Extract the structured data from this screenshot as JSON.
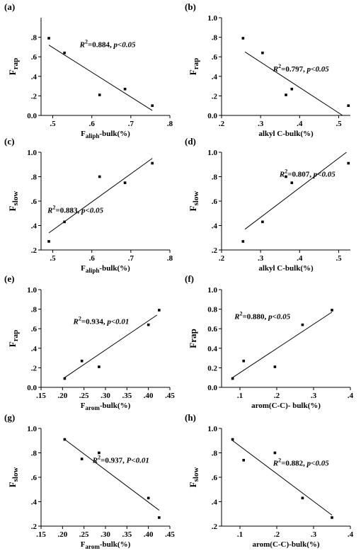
{
  "chart_data": [
    {
      "type": "scatter",
      "panel": "(a)",
      "ylabel": [
        "F",
        "rap"
      ],
      "xlabel": [
        "F",
        "aliph",
        "-bulk(%)"
      ],
      "annotation": [
        "R",
        "2",
        "=0.884, ",
        "p<0.05"
      ],
      "x": [
        0.49,
        0.53,
        0.62,
        0.685,
        0.755
      ],
      "values": [
        0.79,
        0.64,
        0.21,
        0.27,
        0.1
      ],
      "trend": {
        "x": [
          0.49,
          0.755
        ],
        "y": [
          0.72,
          0.05
        ]
      },
      "xlim": [
        0.47,
        0.8
      ],
      "ylim": [
        0,
        1
      ],
      "xticks": [
        {
          "value": 0.5,
          "label": ".5"
        },
        {
          "value": 0.6,
          "label": ".6"
        },
        {
          "value": 0.7,
          "label": ".7"
        },
        {
          "value": 0.8,
          "label": ".8"
        }
      ],
      "yticks": [
        {
          "value": 0,
          "label": "0.0"
        },
        {
          "value": 0.2,
          "label": ".2"
        },
        {
          "value": 0.4,
          "label": ".4"
        },
        {
          "value": 0.6,
          "label": ".6"
        },
        {
          "value": 0.8,
          "label": ".8"
        }
      ],
      "color": "#000000"
    },
    {
      "type": "scatter",
      "panel": "(b)",
      "ylabel": [
        "F",
        "rap"
      ],
      "xlabel": [
        "alkyl C-bulk(%)"
      ],
      "annotation": [
        "R",
        "2",
        "=0.797, ",
        "p<0.05"
      ],
      "x": [
        0.255,
        0.305,
        0.365,
        0.38,
        0.525
      ],
      "values": [
        0.79,
        0.64,
        0.21,
        0.27,
        0.1
      ],
      "trend": {
        "x": [
          0.26,
          0.51
        ],
        "y": [
          0.65,
          0
        ]
      },
      "xlim": [
        0.2,
        0.53
      ],
      "ylim": [
        0,
        1
      ],
      "xticks": [
        {
          "value": 0.2,
          "label": ".2"
        },
        {
          "value": 0.3,
          "label": ".3"
        },
        {
          "value": 0.4,
          "label": ".4"
        },
        {
          "value": 0.5,
          "label": ".5"
        }
      ],
      "yticks": [
        {
          "value": 0,
          "label": "0.0"
        },
        {
          "value": 0.2,
          "label": ".2"
        },
        {
          "value": 0.4,
          "label": ".4"
        },
        {
          "value": 0.6,
          "label": ".6"
        },
        {
          "value": 0.8,
          "label": ".8"
        },
        {
          "value": 1,
          "label": "1.0"
        }
      ],
      "color": "#000000"
    },
    {
      "type": "scatter",
      "panel": "(c)",
      "ylabel": [
        "F",
        "slow"
      ],
      "xlabel": [
        "F",
        "aliph",
        "-bulk(%)"
      ],
      "annotation": [
        "R",
        "2",
        "=0.883, ",
        "p<0.05"
      ],
      "x": [
        0.49,
        0.53,
        0.62,
        0.685,
        0.755
      ],
      "values": [
        0.27,
        0.43,
        0.8,
        0.75,
        0.91
      ],
      "trend": {
        "x": [
          0.49,
          0.755
        ],
        "y": [
          0.34,
          0.95
        ]
      },
      "xlim": [
        0.47,
        0.8
      ],
      "ylim": [
        0.2,
        1
      ],
      "xticks": [
        {
          "value": 0.5,
          "label": ".5"
        },
        {
          "value": 0.6,
          "label": ".6"
        },
        {
          "value": 0.7,
          "label": ".7"
        },
        {
          "value": 0.8,
          "label": ".8"
        }
      ],
      "yticks": [
        {
          "value": 0.2,
          "label": ".2"
        },
        {
          "value": 0.4,
          "label": ".4"
        },
        {
          "value": 0.6,
          "label": ".6"
        },
        {
          "value": 0.8,
          "label": ".8"
        },
        {
          "value": 1,
          "label": "1.0"
        }
      ],
      "color": "#000000"
    },
    {
      "type": "scatter",
      "panel": "(d)",
      "ylabel": [
        "F",
        "slow"
      ],
      "xlabel": [
        "alkyl C-bulk(%)"
      ],
      "annotation": [
        "R",
        "2",
        "=0.807, ",
        "p<0.05"
      ],
      "x": [
        0.255,
        0.305,
        0.365,
        0.38,
        0.525
      ],
      "values": [
        0.27,
        0.43,
        0.8,
        0.75,
        0.91
      ],
      "trend": {
        "x": [
          0.26,
          0.52
        ],
        "y": [
          0.37,
          1
        ]
      },
      "xlim": [
        0.2,
        0.53
      ],
      "ylim": [
        0.2,
        1
      ],
      "xticks": [
        {
          "value": 0.2,
          "label": ".2"
        },
        {
          "value": 0.3,
          "label": ".3"
        },
        {
          "value": 0.4,
          "label": ".4"
        },
        {
          "value": 0.5,
          "label": ".5"
        }
      ],
      "yticks": [
        {
          "value": 0.2,
          "label": ".2"
        },
        {
          "value": 0.4,
          "label": ".4"
        },
        {
          "value": 0.6,
          "label": ".6"
        },
        {
          "value": 0.8,
          "label": ".8"
        },
        {
          "value": 1,
          "label": "1.0"
        }
      ],
      "color": "#000000"
    },
    {
      "type": "scatter",
      "panel": "(e)",
      "ylabel": [
        "F",
        "rap"
      ],
      "xlabel": [
        "F",
        "arom",
        "-bulk(%)"
      ],
      "annotation": [
        "R",
        "2",
        "=0.934, ",
        "p<0.01"
      ],
      "x": [
        0.205,
        0.245,
        0.285,
        0.4,
        0.425
      ],
      "values": [
        0.09,
        0.27,
        0.21,
        0.64,
        0.79
      ],
      "trend": {
        "x": [
          0.205,
          0.42
        ],
        "y": [
          0.1,
          0.74
        ]
      },
      "xlim": [
        0.15,
        0.45
      ],
      "ylim": [
        0,
        1
      ],
      "xticks": [
        {
          "value": 0.15,
          "label": ".15"
        },
        {
          "value": 0.2,
          "label": ".20"
        },
        {
          "value": 0.25,
          "label": ".25"
        },
        {
          "value": 0.3,
          "label": ".30"
        },
        {
          "value": 0.35,
          "label": ".35"
        },
        {
          "value": 0.4,
          "label": ".40"
        },
        {
          "value": 0.45,
          "label": ".45"
        }
      ],
      "yticks": [
        {
          "value": 0,
          "label": "0.0"
        },
        {
          "value": 0.2,
          "label": ".2"
        },
        {
          "value": 0.4,
          "label": ".4"
        },
        {
          "value": 0.6,
          "label": ".6"
        },
        {
          "value": 0.8,
          "label": ".8"
        },
        {
          "value": 1,
          "label": "1.0"
        }
      ],
      "color": "#000000"
    },
    {
      "type": "scatter",
      "panel": "(f)",
      "ylabel": [
        "Frap"
      ],
      "xlabel": [
        "arom(C-C)- bulk(%)"
      ],
      "annotation": [
        "R",
        "2",
        "=0.880, ",
        "p<0.05"
      ],
      "x": [
        0.08,
        0.11,
        0.195,
        0.27,
        0.35
      ],
      "values": [
        0.09,
        0.27,
        0.21,
        0.64,
        0.79
      ],
      "trend": {
        "x": [
          0.08,
          0.35
        ],
        "y": [
          0.1,
          0.77
        ]
      },
      "xlim": [
        0.05,
        0.4
      ],
      "ylim": [
        0,
        1
      ],
      "xticks": [
        {
          "value": 0.1,
          "label": ".1"
        },
        {
          "value": 0.2,
          "label": ".2"
        },
        {
          "value": 0.3,
          "label": ".3"
        },
        {
          "value": 0.4,
          "label": ".4"
        }
      ],
      "yticks": [
        {
          "value": 0,
          "label": "0.0"
        },
        {
          "value": 0.2,
          "label": "0.2"
        },
        {
          "value": 0.4,
          "label": "0.4"
        },
        {
          "value": 0.6,
          "label": "0.6"
        },
        {
          "value": 0.8,
          "label": "0.8"
        },
        {
          "value": 1,
          "label": "1.0"
        }
      ],
      "color": "#000000"
    },
    {
      "type": "scatter",
      "panel": "(g)",
      "ylabel": [
        "F",
        "slow"
      ],
      "xlabel": [
        "F",
        "arom",
        "-bulk(%)"
      ],
      "annotation": [
        "R",
        "2",
        "=0.937, ",
        "P<0.01"
      ],
      "x": [
        0.205,
        0.245,
        0.285,
        0.4,
        0.425
      ],
      "values": [
        0.91,
        0.75,
        0.8,
        0.43,
        0.27
      ],
      "trend": {
        "x": [
          0.205,
          0.425
        ],
        "y": [
          0.91,
          0.33
        ]
      },
      "xlim": [
        0.15,
        0.45
      ],
      "ylim": [
        0.2,
        1
      ],
      "xticks": [
        {
          "value": 0.15,
          "label": ".15"
        },
        {
          "value": 0.2,
          "label": ".20"
        },
        {
          "value": 0.25,
          "label": ".25"
        },
        {
          "value": 0.3,
          "label": ".30"
        },
        {
          "value": 0.35,
          "label": ".35"
        },
        {
          "value": 0.4,
          "label": ".40"
        },
        {
          "value": 0.45,
          "label": ".45"
        }
      ],
      "yticks": [
        {
          "value": 0.2,
          "label": ".2"
        },
        {
          "value": 0.4,
          "label": ".4"
        },
        {
          "value": 0.6,
          "label": ".6"
        },
        {
          "value": 0.8,
          "label": ".8"
        },
        {
          "value": 1,
          "label": "1.0"
        }
      ],
      "color": "#000000"
    },
    {
      "type": "scatter",
      "panel": "(h)",
      "ylabel": [
        "F",
        "slow"
      ],
      "xlabel": [
        "arom(C-C)-bulk(%)"
      ],
      "annotation": [
        "R",
        "2",
        "=0.882, ",
        "p<0.05"
      ],
      "x": [
        0.08,
        0.11,
        0.195,
        0.27,
        0.35
      ],
      "values": [
        0.91,
        0.74,
        0.8,
        0.43,
        0.27
      ],
      "trend": {
        "x": [
          0.08,
          0.35
        ],
        "y": [
          0.9,
          0.29
        ]
      },
      "xlim": [
        0.05,
        0.4
      ],
      "ylim": [
        0.2,
        1
      ],
      "xticks": [
        {
          "value": 0.1,
          "label": ".1"
        },
        {
          "value": 0.2,
          "label": ".2"
        },
        {
          "value": 0.3,
          "label": ".3"
        },
        {
          "value": 0.4,
          "label": ".4"
        }
      ],
      "yticks": [
        {
          "value": 0.2,
          "label": ".2"
        },
        {
          "value": 0.4,
          "label": ".4"
        },
        {
          "value": 0.6,
          "label": ".6"
        },
        {
          "value": 0.8,
          "label": ".8"
        },
        {
          "value": 1,
          "label": "1.0"
        }
      ],
      "color": "#000000"
    }
  ]
}
